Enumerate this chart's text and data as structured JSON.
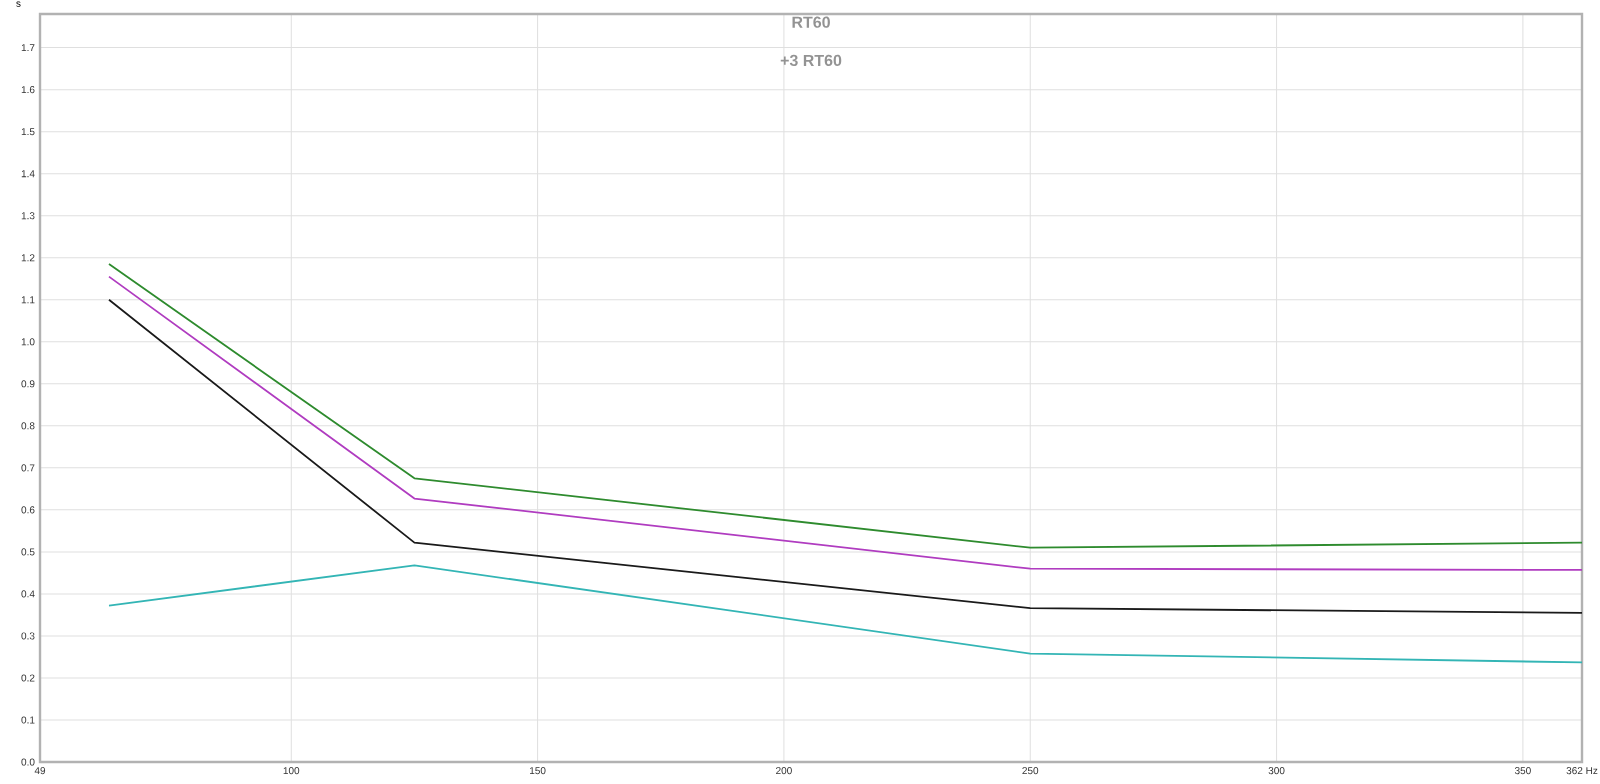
{
  "chart_data": {
    "type": "line",
    "title": "RT60",
    "subtitle": "+3 RT60",
    "ylabel": "s",
    "xlim": [
      49,
      362
    ],
    "ylim": [
      0,
      1.78
    ],
    "xticks": [
      49,
      100,
      150,
      200,
      250,
      300,
      350,
      {
        "value": 362,
        "label": "362 Hz"
      }
    ],
    "yticks": [
      {
        "value": 0,
        "label": "0.0"
      },
      0.1,
      0.2,
      0.3,
      0.4,
      0.5,
      0.6,
      0.7,
      0.8,
      0.9,
      {
        "value": 1,
        "label": "1.0"
      },
      1.1,
      1.2,
      1.3,
      1.4,
      1.5,
      1.6,
      1.7
    ],
    "grid": true,
    "line_style": "solid",
    "marker": "none",
    "series": [
      {
        "color": "#2e8b2e",
        "x": [
          63,
          125,
          250,
          362
        ],
        "values": [
          1.185,
          0.675,
          0.51,
          0.522
        ]
      },
      {
        "color": "#b03cc0",
        "x": [
          63,
          125,
          250,
          362
        ],
        "values": [
          1.155,
          0.627,
          0.46,
          0.457
        ]
      },
      {
        "color": "#1a1a1a",
        "x": [
          63,
          125,
          250,
          362
        ],
        "values": [
          1.1,
          0.522,
          0.366,
          0.355
        ]
      },
      {
        "color": "#33b5b5",
        "x": [
          63,
          125,
          250,
          362
        ],
        "values": [
          0.372,
          0.468,
          0.258,
          0.237
        ]
      }
    ]
  }
}
